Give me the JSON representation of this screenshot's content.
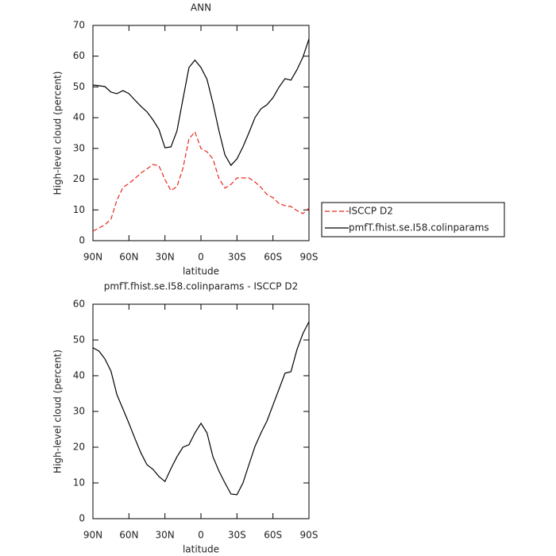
{
  "chart_data": [
    {
      "type": "line",
      "title": "ANN",
      "x_label": "latitude",
      "y_label": "High-level cloud (percent)",
      "x": [
        90,
        85,
        80,
        75,
        70,
        65,
        60,
        55,
        50,
        45,
        40,
        35,
        30,
        25,
        20,
        15,
        10,
        5,
        0,
        -5,
        -10,
        -15,
        -20,
        -25,
        -30,
        -35,
        -40,
        -45,
        -50,
        -55,
        -60,
        -65,
        -70,
        -75,
        -80,
        -85,
        -90
      ],
      "series": [
        {
          "name": "ISCCP D2",
          "color": "#e8281e",
          "linestyle": "dashed",
          "values": [
            3.1,
            4.1,
            5.2,
            7,
            13.2,
            17.3,
            18.6,
            20.2,
            22,
            23.3,
            24.8,
            24.3,
            19.9,
            16.3,
            17.6,
            23.5,
            33.1,
            35.4,
            30,
            28.9,
            26.6,
            20.2,
            17.1,
            18.3,
            20.4,
            20.4,
            20.4,
            19.1,
            17.3,
            15,
            14,
            12.1,
            11.4,
            11.1,
            9.8,
            8.8,
            10.6
          ]
        },
        {
          "name": "pmfT.fhist.se.I58.colinparams",
          "color": "#000000",
          "linestyle": "solid",
          "values": [
            50.6,
            50.4,
            50.1,
            48.3,
            47.8,
            48.8,
            47.8,
            45.7,
            43.7,
            41.9,
            39.3,
            36.2,
            30.2,
            30.5,
            35.7,
            46,
            56.3,
            58.7,
            56.3,
            52.5,
            44.7,
            35.7,
            27.9,
            24.5,
            26.6,
            30.5,
            35.1,
            40,
            42.9,
            44.2,
            46.5,
            49.9,
            52.7,
            52.2,
            55.6,
            59.7,
            65.6
          ]
        }
      ],
      "xlim": [
        90,
        -90
      ],
      "xticks": [
        {
          "value": 90,
          "label": "90N"
        },
        {
          "value": 60,
          "label": "60N"
        },
        {
          "value": 30,
          "label": "30N"
        },
        0,
        {
          "value": -30,
          "label": "30S"
        },
        {
          "value": -60,
          "label": "60S"
        },
        {
          "value": -90,
          "label": "90S"
        }
      ],
      "ylim": [
        0,
        70
      ],
      "yticks": [
        0,
        10,
        20,
        30,
        40,
        50,
        60,
        70
      ],
      "legend": "outside right"
    },
    {
      "type": "line",
      "title": "pmfT.fhist.se.I58.colinparams - ISCCP D2",
      "x_label": "latitude",
      "y_label": "High-level cloud (percent)",
      "x": [
        90,
        85,
        80,
        75,
        70,
        65,
        60,
        55,
        50,
        45,
        40,
        35,
        30,
        25,
        20,
        15,
        10,
        5,
        0,
        -5,
        -10,
        -15,
        -20,
        -25,
        -30,
        -35,
        -40,
        -45,
        -50,
        -55,
        -60,
        -65,
        -70,
        -75,
        -80,
        -85,
        -90
      ],
      "series": [
        {
          "color": "#000000",
          "linestyle": "solid",
          "values": [
            47.8,
            46.9,
            44.7,
            41.3,
            34.7,
            30.7,
            26.7,
            22.4,
            18.4,
            15.1,
            13.8,
            11.8,
            10.4,
            14,
            17.3,
            20,
            20.7,
            24,
            26.7,
            24,
            17.3,
            13.3,
            10,
            6.9,
            6.7,
            10,
            15.1,
            20.2,
            24,
            27.3,
            31.8,
            36.2,
            40.7,
            41.1,
            47.3,
            51.8,
            55.1
          ]
        }
      ],
      "xlim": [
        90,
        -90
      ],
      "xticks": [
        {
          "value": 90,
          "label": "90N"
        },
        {
          "value": 60,
          "label": "60N"
        },
        {
          "value": 30,
          "label": "30N"
        },
        0,
        {
          "value": -30,
          "label": "30S"
        },
        {
          "value": -60,
          "label": "60S"
        },
        {
          "value": -90,
          "label": "90S"
        }
      ],
      "ylim": [
        0,
        60
      ],
      "yticks": [
        0,
        10,
        20,
        30,
        40,
        50,
        60
      ]
    }
  ]
}
